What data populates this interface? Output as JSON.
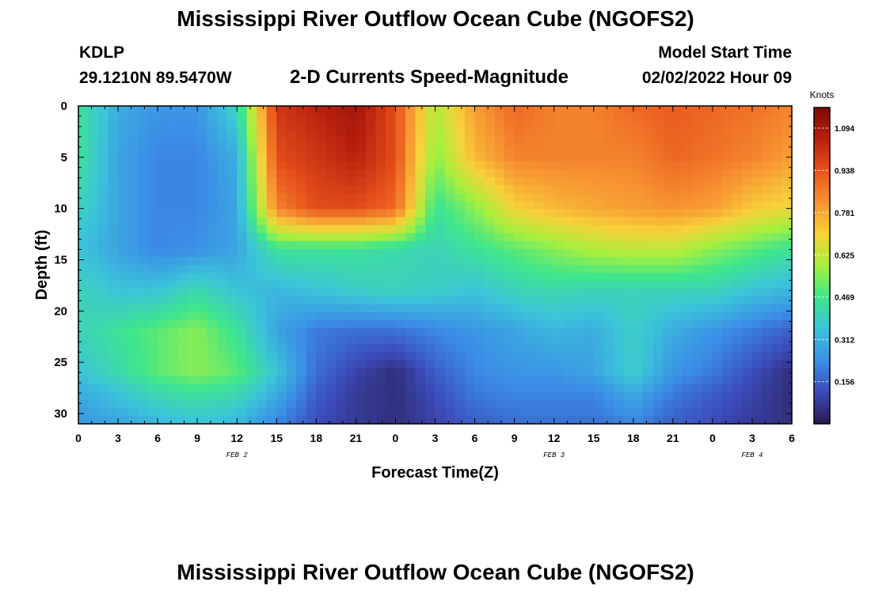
{
  "header": {
    "title": "Mississippi River Outflow Ocean Cube (NGOFS2)",
    "station": "KDLP",
    "coordinates": "29.1210N  89.5470W",
    "subtitle": "2-D Currents Speed-Magnitude",
    "start_label": "Model Start Time",
    "start_value": "02/02/2022 Hour 09"
  },
  "footer": {
    "title": "Mississippi River Outflow Ocean Cube (NGOFS2)"
  },
  "colors": {
    "colormap": [
      "#2a1a4e",
      "#3b4bb8",
      "#3b8fe6",
      "#3bc4d9",
      "#3ee68c",
      "#a8ef3c",
      "#f7d23a",
      "#f79432",
      "#e8531c",
      "#b8200e",
      "#7a0a04"
    ]
  },
  "chart_data": {
    "type": "heatmap",
    "title": "2-D Currents Speed-Magnitude",
    "xlabel": "Forecast Time(Z)",
    "ylabel": "Depth (ft)",
    "x_tick_labels": [
      "0",
      "3",
      "6",
      "9",
      "12",
      "15",
      "18",
      "21",
      "0",
      "3",
      "6",
      "9",
      "12",
      "15",
      "18",
      "21",
      "0",
      "3",
      "6"
    ],
    "date_labels": [
      {
        "text": "FEB 2",
        "at_hours": 12
      },
      {
        "text": "FEB 3",
        "at_hours": 36
      },
      {
        "text": "FEB 4",
        "at_hours": 51
      }
    ],
    "xlim_hours": [
      0,
      54
    ],
    "y_ticks": [
      0,
      5,
      10,
      15,
      20,
      25,
      30
    ],
    "ylim": [
      0,
      31
    ],
    "y_inverted": true,
    "colorbar": {
      "unit": "Knots",
      "ticks": [
        "1.094",
        "0.938",
        "0.781",
        "0.625",
        "0.469",
        "0.312",
        "0.156"
      ],
      "tick_values": [
        1.094,
        0.938,
        0.781,
        0.625,
        0.469,
        0.312,
        0.156
      ],
      "range": [
        0,
        1.17
      ]
    },
    "depths": [
      0,
      5,
      10,
      14,
      18,
      22,
      26,
      28,
      31
    ],
    "hours": [
      0,
      3,
      6,
      9,
      12,
      15,
      18,
      21,
      24,
      27,
      30,
      33,
      36,
      39,
      42,
      45,
      48,
      51,
      54
    ],
    "values": [
      [
        0.45,
        0.3,
        0.25,
        0.25,
        0.4,
        1.0,
        1.05,
        1.1,
        0.95,
        0.6,
        0.8,
        0.9,
        0.85,
        0.85,
        0.9,
        0.92,
        0.9,
        0.88,
        0.85
      ],
      [
        0.45,
        0.28,
        0.22,
        0.22,
        0.3,
        0.95,
        1.0,
        1.05,
        0.95,
        0.55,
        0.75,
        0.85,
        0.85,
        0.85,
        0.85,
        0.9,
        0.88,
        0.85,
        0.8
      ],
      [
        0.4,
        0.28,
        0.22,
        0.22,
        0.28,
        0.85,
        0.95,
        0.95,
        0.9,
        0.45,
        0.55,
        0.7,
        0.75,
        0.78,
        0.8,
        0.82,
        0.8,
        0.72,
        0.68
      ],
      [
        0.35,
        0.28,
        0.22,
        0.24,
        0.28,
        0.45,
        0.45,
        0.45,
        0.42,
        0.4,
        0.45,
        0.5,
        0.55,
        0.6,
        0.62,
        0.62,
        0.55,
        0.5,
        0.45
      ],
      [
        0.4,
        0.35,
        0.35,
        0.42,
        0.35,
        0.32,
        0.35,
        0.38,
        0.4,
        0.38,
        0.35,
        0.4,
        0.42,
        0.4,
        0.4,
        0.4,
        0.4,
        0.35,
        0.32
      ],
      [
        0.4,
        0.45,
        0.5,
        0.55,
        0.45,
        0.28,
        0.2,
        0.18,
        0.18,
        0.22,
        0.25,
        0.28,
        0.32,
        0.3,
        0.38,
        0.3,
        0.25,
        0.2,
        0.15
      ],
      [
        0.35,
        0.42,
        0.5,
        0.55,
        0.5,
        0.35,
        0.18,
        0.1,
        0.05,
        0.15,
        0.22,
        0.25,
        0.25,
        0.28,
        0.38,
        0.25,
        0.2,
        0.12,
        0.05
      ],
      [
        0.3,
        0.35,
        0.42,
        0.45,
        0.42,
        0.3,
        0.15,
        0.08,
        0.05,
        0.12,
        0.2,
        0.22,
        0.22,
        0.22,
        0.3,
        0.2,
        0.15,
        0.1,
        0.05
      ],
      [
        0.25,
        0.28,
        0.32,
        0.35,
        0.32,
        0.22,
        0.12,
        0.08,
        0.05,
        0.1,
        0.15,
        0.18,
        0.18,
        0.18,
        0.22,
        0.15,
        0.12,
        0.08,
        0.05
      ]
    ]
  }
}
